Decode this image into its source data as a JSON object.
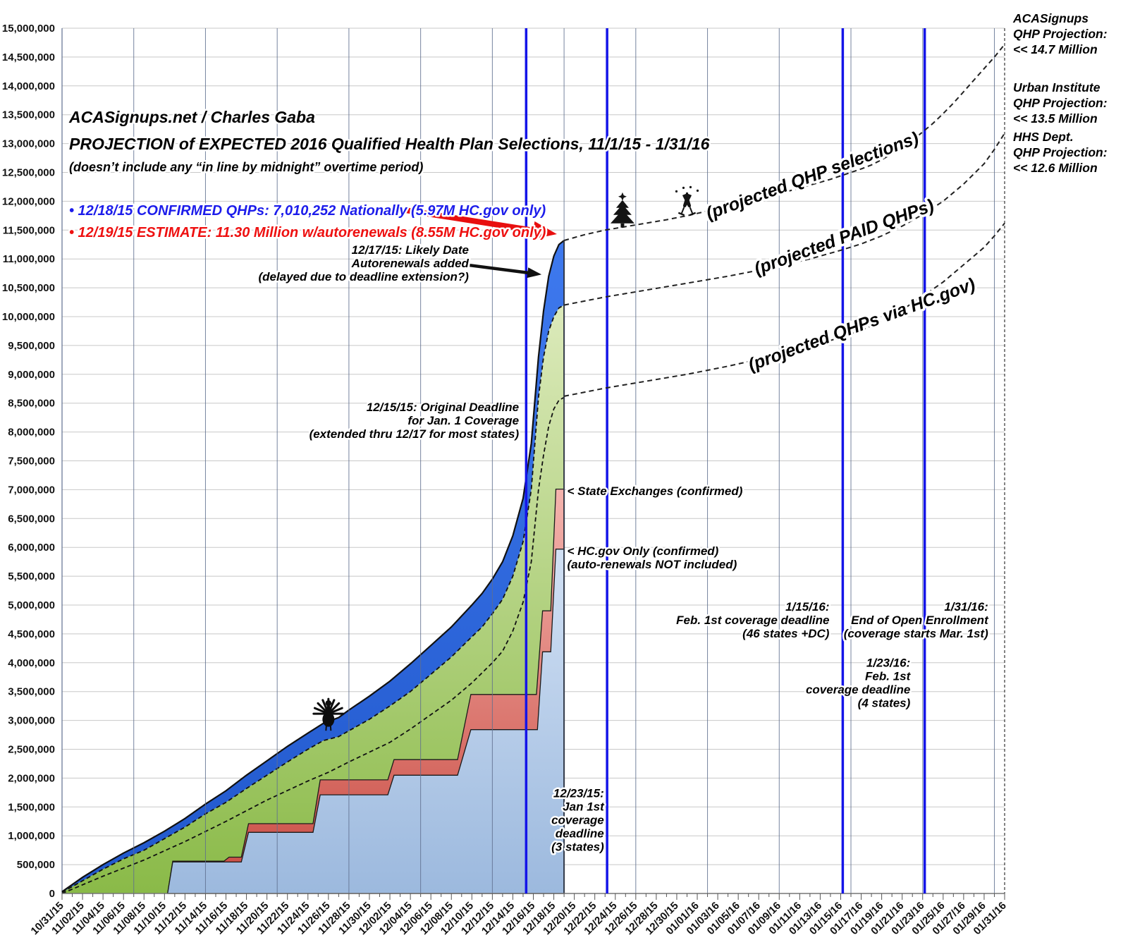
{
  "header": {
    "line1": "ACASignups.net / Charles Gaba",
    "line2": "PROJECTION of EXPECTED 2016 Qualified Health Plan Selections, 11/1/15 - 1/31/16",
    "line3": "(doesn’t include any “in line by midnight” overtime period)"
  },
  "bullets": [
    {
      "text": "• 12/18/15 CONFIRMED QHPs: 7,010,252 Nationally (5.97M HC.gov only)",
      "color": "#1C1CEB"
    },
    {
      "text": "• 12/19/15 ESTIMATE: 11.30 Million w/autorenewals (8.55M HC.gov only)",
      "color": "#EE1010"
    }
  ],
  "proj_labels": [
    "(projected QHP selections)",
    "(projected PAID QHPs)",
    "(projected QHPs via HC.gov)"
  ],
  "right_labels": [
    {
      "lines": [
        "ACASignups",
        "QHP Projection:",
        "<< 14.7 Million"
      ],
      "value_millions": 14.7
    },
    {
      "lines": [
        "Urban Institute",
        "QHP Projection:",
        "<< 13.5 Million"
      ],
      "value_millions": 13.5
    },
    {
      "lines": [
        "HHS Dept.",
        "QHP Projection:",
        "<< 12.6 Million"
      ],
      "value_millions": 12.6
    }
  ],
  "annotations": [
    {
      "id": "autorenewals",
      "align": "right",
      "day": 39.7,
      "m": 11.09,
      "lines": [
        "12/17/15: Likely Date",
        "Autorenewals added",
        "(delayed due to deadline extension?)"
      ]
    },
    {
      "id": "original-deadline",
      "align": "right",
      "day": 44.6,
      "m": 8.36,
      "lines": [
        "12/15/15: Original Deadline",
        "for Jan. 1 Coverage",
        "(extended thru 12/17 for most states)"
      ]
    },
    {
      "id": "state-exchanges",
      "align": "left",
      "day": 49.3,
      "m": 6.91,
      "lines": [
        "< State Exchanges (confirmed)"
      ]
    },
    {
      "id": "hcgov-only",
      "align": "left",
      "day": 49.3,
      "m": 5.87,
      "lines": [
        "< HC.gov Only (confirmed)",
        "  (auto-renewals NOT included)"
      ]
    },
    {
      "id": "jan1-deadline",
      "align": "right",
      "day": 52.9,
      "m": 1.67,
      "lines": [
        "12/23/15:",
        "Jan 1st",
        "coverage",
        "deadline",
        "(3 states)"
      ]
    },
    {
      "id": "feb1-deadline-46",
      "align": "right",
      "day": 74.9,
      "m": 4.9,
      "lines": [
        "1/15/16:",
        "Feb. 1st coverage deadline",
        "(46 states +DC)"
      ]
    },
    {
      "id": "feb1-deadline-4",
      "align": "right",
      "day": 82.8,
      "m": 3.93,
      "lines": [
        "1/23/16:",
        "Feb. 1st",
        "coverage deadline",
        "(4 states)"
      ]
    },
    {
      "id": "end-open-enrollment",
      "align": "right",
      "day": 90.4,
      "m": 4.9,
      "lines": [
        "1/31/16:",
        "End of Open Enrollment",
        "(coverage starts Mar. 1st)"
      ]
    }
  ],
  "events": [
    {
      "id": "deadline-12-15",
      "day": 45.3
    },
    {
      "id": "deadline-12-23",
      "day": 53.2
    },
    {
      "id": "deadline-01-15",
      "day": 76.2
    },
    {
      "id": "deadline-01-23",
      "day": 84.2
    }
  ],
  "arrows": [
    {
      "id": "estimate-arrow",
      "color": "#E80F0F",
      "from": [
        32.3,
        11.88
      ],
      "to": [
        48.3,
        11.43
      ],
      "width": 8,
      "headL": 34,
      "headW": 26
    },
    {
      "id": "autorenewal-arrow",
      "color": "#111111",
      "from": [
        39.8,
        10.89
      ],
      "to": [
        46.8,
        10.73
      ],
      "width": 4.5,
      "headL": 20,
      "headW": 15
    }
  ],
  "icons": [
    {
      "id": "thanksgiving-turkey-icon",
      "day": 26.0,
      "m": 3.14
    },
    {
      "id": "christmas-tree-icon",
      "day": 54.7,
      "m": 11.8
    },
    {
      "id": "champagne-toast-icon",
      "day": 61.0,
      "m": 12.0
    }
  ],
  "axes": {
    "x_tick_labels": [
      "10/31/15",
      "11/02/15",
      "11/04/15",
      "11/06/15",
      "11/08/15",
      "11/10/15",
      "11/12/15",
      "11/14/15",
      "11/16/15",
      "11/18/15",
      "11/20/15",
      "11/22/15",
      "11/24/15",
      "11/26/15",
      "11/28/15",
      "11/30/15",
      "12/02/15",
      "12/04/15",
      "12/06/15",
      "12/08/15",
      "12/10/15",
      "12/12/15",
      "12/14/15",
      "12/16/15",
      "12/18/15",
      "12/20/15",
      "12/22/15",
      "12/24/15",
      "12/26/15",
      "12/28/15",
      "12/30/15",
      "01/01/16",
      "01/03/16",
      "01/05/16",
      "01/07/16",
      "01/09/16",
      "01/11/16",
      "01/13/16",
      "01/15/16",
      "01/17/16",
      "01/19/16",
      "01/21/16",
      "01/23/16",
      "01/25/16",
      "01/27/16",
      "01/29/16",
      "01/31/16"
    ],
    "x_label_step_days": 2,
    "x_total_days": 92,
    "y_tick_labels": [
      "0",
      "500,000",
      "1,000,000",
      "1,500,000",
      "2,000,000",
      "2,500,000",
      "3,000,000",
      "3,500,000",
      "4,000,000",
      "4,500,000",
      "5,000,000",
      "5,500,000",
      "6,000,000",
      "6,500,000",
      "7,000,000",
      "7,500,000",
      "8,000,000",
      "8,500,000",
      "9,000,000",
      "9,500,000",
      "10,000,000",
      "10,500,000",
      "11,000,000",
      "11,500,000",
      "12,000,000",
      "12,500,000",
      "13,000,000",
      "13,500,000",
      "14,000,000",
      "14,500,000",
      "15,000,000"
    ],
    "y_step_millions": 0.5,
    "y_max_millions": 15,
    "vertical_gridline_every_days": 7
  },
  "colors": {
    "hcgov_confirmed_area": "#A9C3E6",
    "state_exchanges_area": "#DD6A5F",
    "green_area": "#9CC75C",
    "projection_blue_band": "#2D6BE4",
    "event_line": "#1414E8",
    "grid_horizontal": "#C8C8C8",
    "grid_vertical": "#5F6F8F"
  },
  "chart_data": {
    "type": "area",
    "title": "PROJECTION of EXPECTED 2016 Qualified Health Plan Selections, 11/1/15 - 1/31/16",
    "x_unit": "days since 10/31/15",
    "y_unit": "QHP selections (millions)",
    "x_range_days": [
      0,
      92
    ],
    "ylim_millions": [
      0,
      15
    ],
    "series": {
      "blue_top_total_selections": [
        [
          0,
          0.03
        ],
        [
          2,
          0.28
        ],
        [
          4,
          0.5
        ],
        [
          6,
          0.7
        ],
        [
          8,
          0.88
        ],
        [
          10,
          1.08
        ],
        [
          12,
          1.3
        ],
        [
          14,
          1.55
        ],
        [
          16,
          1.78
        ],
        [
          18,
          2.05
        ],
        [
          20,
          2.3
        ],
        [
          22,
          2.55
        ],
        [
          24,
          2.78
        ],
        [
          25.5,
          2.95
        ],
        [
          27,
          3.05
        ],
        [
          28,
          3.18
        ],
        [
          30,
          3.42
        ],
        [
          32,
          3.68
        ],
        [
          34,
          3.98
        ],
        [
          36,
          4.3
        ],
        [
          38,
          4.62
        ],
        [
          40,
          5.0
        ],
        [
          41,
          5.2
        ],
        [
          42,
          5.45
        ],
        [
          43,
          5.75
        ],
        [
          44,
          6.2
        ],
        [
          45,
          6.85
        ],
        [
          45.8,
          7.8
        ],
        [
          46.5,
          9.3
        ],
        [
          47,
          10.1
        ],
        [
          47.5,
          10.7
        ],
        [
          48,
          11.05
        ],
        [
          48.5,
          11.25
        ],
        [
          49,
          11.32
        ]
      ],
      "green_top_paid": [
        [
          0,
          0.02
        ],
        [
          2,
          0.22
        ],
        [
          4,
          0.42
        ],
        [
          6,
          0.6
        ],
        [
          8,
          0.75
        ],
        [
          10,
          0.95
        ],
        [
          12,
          1.15
        ],
        [
          14,
          1.38
        ],
        [
          16,
          1.58
        ],
        [
          18,
          1.82
        ],
        [
          20,
          2.05
        ],
        [
          22,
          2.28
        ],
        [
          24,
          2.5
        ],
        [
          25.5,
          2.65
        ],
        [
          27,
          2.72
        ],
        [
          28,
          2.82
        ],
        [
          30,
          3.02
        ],
        [
          32,
          3.25
        ],
        [
          34,
          3.5
        ],
        [
          36,
          3.8
        ],
        [
          38,
          4.1
        ],
        [
          40,
          4.45
        ],
        [
          41,
          4.62
        ],
        [
          42,
          4.85
        ],
        [
          43,
          5.1
        ],
        [
          44,
          5.5
        ],
        [
          45,
          6.1
        ],
        [
          45.8,
          7.0
        ],
        [
          46.5,
          8.6
        ],
        [
          47,
          9.3
        ],
        [
          47.5,
          9.75
        ],
        [
          48,
          10.0
        ],
        [
          48.5,
          10.15
        ],
        [
          49,
          10.2
        ]
      ],
      "inner_dashed_hcgov_track": [
        [
          0,
          0.0
        ],
        [
          4,
          0.3
        ],
        [
          8,
          0.58
        ],
        [
          12,
          0.9
        ],
        [
          16,
          1.25
        ],
        [
          20,
          1.62
        ],
        [
          24,
          1.95
        ],
        [
          26,
          2.1
        ],
        [
          28,
          2.28
        ],
        [
          30,
          2.45
        ],
        [
          32,
          2.62
        ],
        [
          34,
          2.85
        ],
        [
          36,
          3.1
        ],
        [
          38,
          3.35
        ],
        [
          40,
          3.65
        ],
        [
          42,
          4.0
        ],
        [
          43,
          4.2
        ],
        [
          44,
          4.55
        ],
        [
          45,
          5.05
        ],
        [
          45.8,
          5.75
        ],
        [
          46.5,
          7.0
        ],
        [
          47,
          7.6
        ],
        [
          47.5,
          8.1
        ],
        [
          48,
          8.4
        ],
        [
          48.5,
          8.55
        ],
        [
          49,
          8.6
        ]
      ],
      "state_exchanges_steps": [
        [
          10.3,
          0
        ],
        [
          10.8,
          0.56
        ],
        [
          15.8,
          0.56
        ],
        [
          16.3,
          0.63
        ],
        [
          17.5,
          0.63
        ],
        [
          18.2,
          1.21
        ],
        [
          24.5,
          1.21
        ],
        [
          25.2,
          1.97
        ],
        [
          31.8,
          1.97
        ],
        [
          32.4,
          2.32
        ],
        [
          38.6,
          2.32
        ],
        [
          39.9,
          3.45
        ],
        [
          46.3,
          3.45
        ],
        [
          46.9,
          4.9
        ],
        [
          47.7,
          4.9
        ],
        [
          48.2,
          7.01
        ],
        [
          49,
          7.01
        ]
      ],
      "hcgov_confirmed_steps": [
        [
          10.3,
          0
        ],
        [
          10.8,
          0.545
        ],
        [
          17.5,
          0.545
        ],
        [
          18.2,
          1.06
        ],
        [
          24.5,
          1.06
        ],
        [
          25.2,
          1.71
        ],
        [
          31.8,
          1.71
        ],
        [
          32.4,
          2.05
        ],
        [
          38.6,
          2.05
        ],
        [
          39.9,
          2.84
        ],
        [
          46.4,
          2.84
        ],
        [
          46.9,
          4.19
        ],
        [
          47.7,
          4.19
        ],
        [
          48.2,
          5.97
        ],
        [
          49,
          5.97
        ]
      ],
      "projected_qhp_selections": [
        [
          49,
          11.32
        ],
        [
          51,
          11.42
        ],
        [
          53,
          11.5
        ],
        [
          55,
          11.56
        ],
        [
          57,
          11.62
        ],
        [
          59,
          11.68
        ],
        [
          61,
          11.75
        ],
        [
          63,
          11.83
        ],
        [
          65,
          11.91
        ],
        [
          67,
          12.0
        ],
        [
          69,
          12.08
        ],
        [
          71,
          12.18
        ],
        [
          73,
          12.28
        ],
        [
          75,
          12.38
        ],
        [
          76,
          12.44
        ],
        [
          77,
          12.5
        ],
        [
          78,
          12.56
        ],
        [
          79,
          12.63
        ],
        [
          80,
          12.72
        ],
        [
          81,
          12.82
        ],
        [
          82,
          12.93
        ],
        [
          83,
          13.06
        ],
        [
          84,
          13.2
        ],
        [
          85,
          13.35
        ],
        [
          86,
          13.52
        ],
        [
          87,
          13.7
        ],
        [
          88,
          13.9
        ],
        [
          89,
          14.1
        ],
        [
          90,
          14.3
        ],
        [
          91,
          14.5
        ],
        [
          92,
          14.72
        ]
      ],
      "projected_paid_qhps": [
        [
          49,
          10.2
        ],
        [
          53,
          10.34
        ],
        [
          57,
          10.46
        ],
        [
          61,
          10.58
        ],
        [
          65,
          10.7
        ],
        [
          69,
          10.84
        ],
        [
          73,
          11.0
        ],
        [
          76,
          11.15
        ],
        [
          78,
          11.26
        ],
        [
          80,
          11.4
        ],
        [
          82,
          11.57
        ],
        [
          84,
          11.77
        ],
        [
          86,
          12.0
        ],
        [
          88,
          12.3
        ],
        [
          90,
          12.65
        ],
        [
          91,
          12.9
        ],
        [
          92,
          13.18
        ]
      ],
      "projected_qhps_via_hcgov": [
        [
          49,
          8.62
        ],
        [
          53,
          8.76
        ],
        [
          57,
          8.88
        ],
        [
          61,
          9.0
        ],
        [
          65,
          9.14
        ],
        [
          69,
          9.3
        ],
        [
          73,
          9.48
        ],
        [
          76,
          9.64
        ],
        [
          78,
          9.76
        ],
        [
          80,
          9.92
        ],
        [
          82,
          10.12
        ],
        [
          84,
          10.35
        ],
        [
          86,
          10.6
        ],
        [
          88,
          10.9
        ],
        [
          90,
          11.2
        ],
        [
          91,
          11.4
        ],
        [
          92,
          11.62
        ]
      ]
    },
    "key_values": {
      "confirmed_qhps_12_18": "7,010,252",
      "confirmed_hcgov_12_18_millions": 5.97,
      "estimate_12_19_millions": 11.3,
      "estimate_hcgov_12_19_millions": 8.55,
      "acasignups_projection_millions": 14.7,
      "urban_institute_projection_millions": 13.5,
      "hhs_projection_millions": 12.6
    }
  }
}
